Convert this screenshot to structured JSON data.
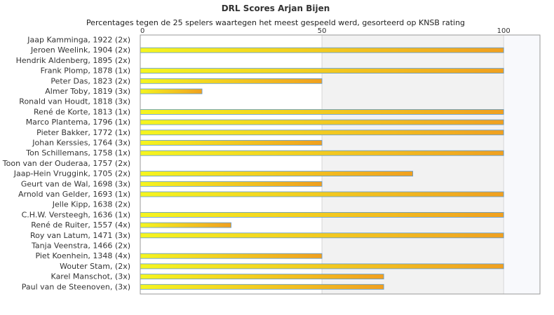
{
  "chart_data": {
    "type": "bar",
    "orientation": "horizontal",
    "title": "DRL Scores Arjan Bijen",
    "subtitle": "Percentages tegen de 25 spelers waartegen het meest gespeeld werd, gesorteerd op KNSB rating",
    "xlim": [
      0,
      110
    ],
    "x_ticks": [
      "0",
      "50",
      "100"
    ],
    "grid": "vertical",
    "categories": [
      "Jaap Kamminga, 1922 (2x)",
      "Jeroen Weelink, 1904 (2x)",
      "Hendrik Aldenberg, 1895 (2x)",
      "Frank Plomp, 1878 (1x)",
      "Peter Das, 1823 (2x)",
      "Almer Toby, 1819 (3x)",
      "Ronald van Houdt, 1818 (3x)",
      "René de Korte, 1813 (1x)",
      "Marco Plantema, 1796 (1x)",
      "Pieter Bakker, 1772 (1x)",
      "Johan Kerssies, 1764 (3x)",
      "Ton Schillemans, 1758 (1x)",
      "Toon van der Ouderaa, 1757 (2x)",
      "Jaap-Hein Vruggink, 1705 (2x)",
      "Geurt van de Wal, 1698 (3x)",
      "Arnold van Gelder, 1693 (1x)",
      "Jelle Kipp, 1638 (2x)",
      "C.H.W. Versteegh, 1636 (1x)",
      "René de Ruiter, 1557 (4x)",
      "Roy van Latum, 1471 (3x)",
      "Tanja Veenstra, 1466 (2x)",
      "Piet Koenhein, 1348 (4x)",
      "Wouter Stam,  (2x)",
      "Karel Manschot,  (3x)",
      "Paul van de Steenoven,  (3x)"
    ],
    "values": [
      0,
      100,
      0,
      100,
      50,
      17,
      0,
      100,
      100,
      100,
      50,
      100,
      0,
      75,
      50,
      100,
      0,
      100,
      25,
      100,
      0,
      50,
      100,
      67,
      67
    ]
  },
  "colors": {
    "bar_start": "#f5f520",
    "bar_end": "#f0a020",
    "bar_outline": "#5b9bd5",
    "band_light": "#ffffff",
    "band_mid": "#f2f2f2",
    "band_far": "#f8f9fc"
  }
}
